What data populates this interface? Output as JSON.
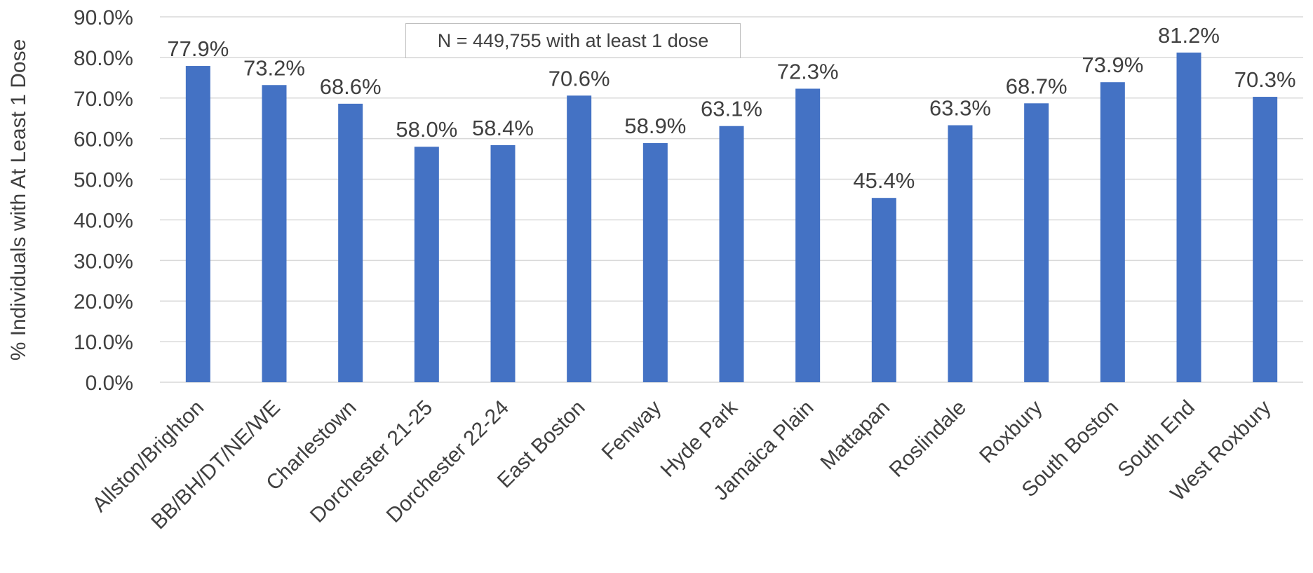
{
  "chart_data": {
    "type": "bar",
    "categories": [
      "Allston/Brighton",
      "BB/BH/DT/NE/WE",
      "Charlestown",
      "Dorchester 21-25",
      "Dorchester 22-24",
      "East Boston",
      "Fenway",
      "Hyde Park",
      "Jamaica Plain",
      "Mattapan",
      "Roslindale",
      "Roxbury",
      "South Boston",
      "South End",
      "West Roxbury"
    ],
    "values": [
      77.9,
      73.2,
      68.6,
      58.0,
      58.4,
      70.6,
      58.9,
      63.1,
      72.3,
      45.4,
      63.3,
      68.7,
      73.9,
      81.2,
      70.3
    ],
    "data_labels": [
      "77.9%",
      "73.2%",
      "68.6%",
      "58.0%",
      "58.4%",
      "70.6%",
      "58.9%",
      "63.1%",
      "72.3%",
      "45.4%",
      "63.3%",
      "68.7%",
      "73.9%",
      "81.2%",
      "70.3%"
    ],
    "y_ticks": [
      0,
      10,
      20,
      30,
      40,
      50,
      60,
      70,
      80,
      90
    ],
    "y_tick_labels": [
      "0.0%",
      "10.0%",
      "20.0%",
      "30.0%",
      "40.0%",
      "50.0%",
      "60.0%",
      "70.0%",
      "80.0%",
      "90.0%"
    ],
    "ylim": [
      0,
      90
    ],
    "ylabel": "% Individuals with At Least 1 Dose",
    "xlabel": "",
    "title": "",
    "annotation": "N = 449,755 with at least 1 dose",
    "grid": true,
    "legend": "none",
    "bar_color": "#4472C4",
    "grid_color": "#d9d9d9",
    "text_color": "#404040"
  }
}
